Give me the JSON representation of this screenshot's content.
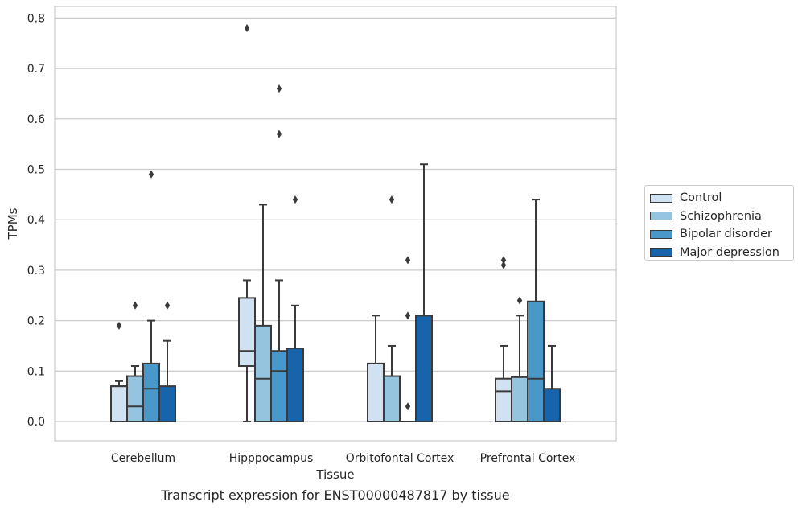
{
  "caption": "Transcript expression for ENST00000487817 by tissue",
  "legend": {
    "items": [
      {
        "label": "Control",
        "color": "#d0e1f2"
      },
      {
        "label": "Schizophrenia",
        "color": "#94c4df"
      },
      {
        "label": "Bipolar disorder",
        "color": "#4a98c9"
      },
      {
        "label": "Major depression",
        "color": "#1764ab"
      }
    ]
  },
  "chart_data": {
    "type": "box",
    "xlabel": "Tissue",
    "ylabel": "TPMs",
    "ylim": [
      -0.04,
      0.82
    ],
    "yticks": [
      0.0,
      0.1,
      0.2,
      0.3,
      0.4,
      0.5,
      0.6,
      0.7,
      0.8
    ],
    "grid": "horizontal",
    "legend_position": "right",
    "categories": [
      "Cerebellum",
      "Hipppocampus",
      "Orbitofontal Cortex",
      "Prefrontal Cortex"
    ],
    "series": [
      {
        "name": "Control",
        "color": "#d0e1f2",
        "boxes": [
          {
            "min": 0.0,
            "q1": 0.0,
            "median": 0.07,
            "q3": 0.07,
            "max": 0.08,
            "outliers": [
              0.19
            ]
          },
          {
            "min": 0.0,
            "q1": 0.11,
            "median": 0.14,
            "q3": 0.245,
            "max": 0.28,
            "outliers": [
              0.78
            ]
          },
          {
            "min": 0.0,
            "q1": 0.0,
            "median": 0.0,
            "q3": 0.115,
            "max": 0.21,
            "outliers": []
          },
          {
            "min": 0.0,
            "q1": 0.0,
            "median": 0.06,
            "q3": 0.085,
            "max": 0.15,
            "outliers": [
              0.31,
              0.32
            ]
          }
        ]
      },
      {
        "name": "Schizophrenia",
        "color": "#94c4df",
        "boxes": [
          {
            "min": 0.0,
            "q1": 0.0,
            "median": 0.03,
            "q3": 0.09,
            "max": 0.11,
            "outliers": [
              0.23
            ]
          },
          {
            "min": 0.0,
            "q1": 0.0,
            "median": 0.085,
            "q3": 0.19,
            "max": 0.43,
            "outliers": []
          },
          {
            "min": 0.0,
            "q1": 0.0,
            "median": 0.0,
            "q3": 0.09,
            "max": 0.15,
            "outliers": [
              0.44
            ]
          },
          {
            "min": 0.0,
            "q1": 0.0,
            "median": 0.0,
            "q3": 0.088,
            "max": 0.21,
            "outliers": [
              0.24
            ]
          }
        ]
      },
      {
        "name": "Bipolar disorder",
        "color": "#4a98c9",
        "boxes": [
          {
            "min": 0.0,
            "q1": 0.0,
            "median": 0.065,
            "q3": 0.115,
            "max": 0.2,
            "outliers": [
              0.49
            ]
          },
          {
            "min": 0.0,
            "q1": 0.0,
            "median": 0.1,
            "q3": 0.14,
            "max": 0.28,
            "outliers": [
              0.57,
              0.66
            ]
          },
          {
            "min": 0.0,
            "q1": 0.0,
            "median": 0.0,
            "q3": 0.0,
            "max": 0.0,
            "outliers": [
              0.03,
              0.21,
              0.32
            ]
          },
          {
            "min": 0.0,
            "q1": 0.0,
            "median": 0.085,
            "q3": 0.238,
            "max": 0.44,
            "outliers": []
          }
        ]
      },
      {
        "name": "Major depression",
        "color": "#1764ab",
        "boxes": [
          {
            "min": 0.0,
            "q1": 0.0,
            "median": 0.0,
            "q3": 0.07,
            "max": 0.16,
            "outliers": [
              0.23
            ]
          },
          {
            "min": 0.0,
            "q1": 0.0,
            "median": 0.0,
            "q3": 0.145,
            "max": 0.23,
            "outliers": [
              0.44
            ]
          },
          {
            "min": 0.0,
            "q1": 0.0,
            "median": 0.0,
            "q3": 0.21,
            "max": 0.51,
            "outliers": []
          },
          {
            "min": 0.0,
            "q1": 0.0,
            "median": 0.0,
            "q3": 0.065,
            "max": 0.15,
            "outliers": []
          }
        ]
      }
    ]
  }
}
